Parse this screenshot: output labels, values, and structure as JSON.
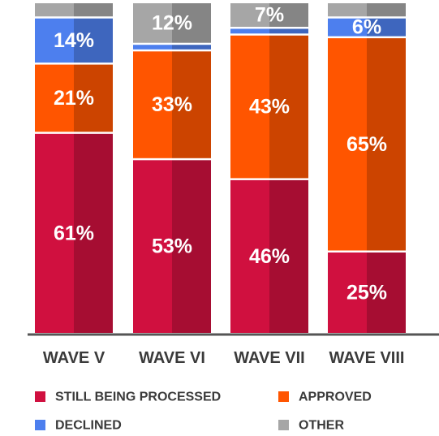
{
  "chart_data": {
    "type": "bar",
    "stacked": true,
    "categories": [
      "WAVE V",
      "WAVE VI",
      "WAVE VII",
      "WAVE VIII"
    ],
    "series": [
      {
        "name": "STILL BEING PROCESSED",
        "color": "#d0103f",
        "values": [
          61,
          53,
          46,
          25
        ],
        "labels": [
          "61%",
          "53%",
          "46%",
          "25%"
        ]
      },
      {
        "name": "APPROVED",
        "color": "#ff5500",
        "values": [
          21,
          33,
          43,
          65
        ],
        "labels": [
          "21%",
          "33%",
          "43%",
          "65%"
        ]
      },
      {
        "name": "DECLINED",
        "color": "#4d7fee",
        "values": [
          14,
          2,
          2,
          6
        ],
        "labels": [
          "14%",
          "",
          "",
          "6%"
        ]
      },
      {
        "name": "OTHER",
        "color": "#a6a6a6",
        "values": [
          4,
          12,
          7,
          4
        ],
        "labels": [
          "",
          "12%",
          "7%",
          ""
        ]
      }
    ],
    "ylim": [
      0,
      100
    ],
    "grid": false,
    "legend_position": "bottom",
    "title": "",
    "xlabel": "",
    "ylabel": ""
  }
}
